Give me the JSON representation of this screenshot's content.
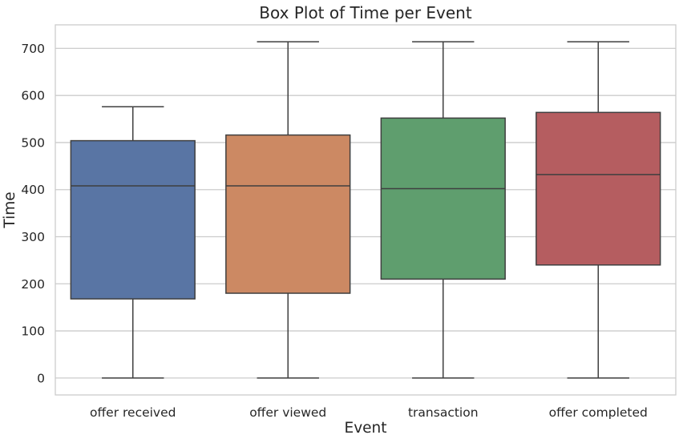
{
  "chart_data": {
    "type": "box",
    "title": "Box Plot of Time per Event",
    "xlabel": "Event",
    "ylabel": "Time",
    "ylim": [
      -36,
      750
    ],
    "yticks": [
      0,
      100,
      200,
      300,
      400,
      500,
      600,
      700
    ],
    "grid": true,
    "categories": [
      "offer received",
      "offer viewed",
      "transaction",
      "offer completed"
    ],
    "boxes": [
      {
        "name": "offer received",
        "color": "#5975a4",
        "whisker_low": 0,
        "q1": 168,
        "median": 408,
        "q3": 504,
        "whisker_high": 576
      },
      {
        "name": "offer viewed",
        "color": "#cc8963",
        "whisker_low": 0,
        "q1": 180,
        "median": 408,
        "q3": 516,
        "whisker_high": 714
      },
      {
        "name": "transaction",
        "color": "#5f9e6e",
        "whisker_low": 0,
        "q1": 210,
        "median": 402,
        "q3": 552,
        "whisker_high": 714
      },
      {
        "name": "offer completed",
        "color": "#b55d60",
        "whisker_low": 0,
        "q1": 240,
        "median": 432,
        "q3": 564,
        "whisker_high": 714
      }
    ]
  }
}
